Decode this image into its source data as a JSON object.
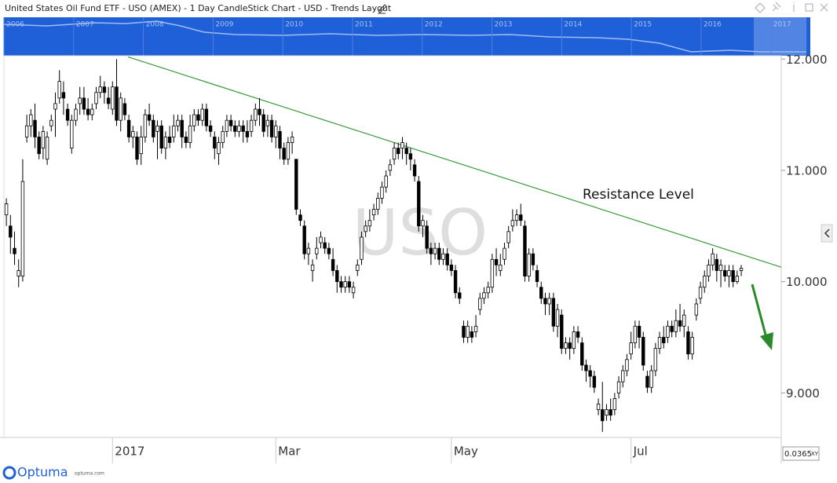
{
  "chart_data": {
    "type": "candlestick",
    "title": "United States Oil Fund ETF - USO (AMEX) - 1 Day CandleStick Chart - USD - Trends Layout",
    "watermark": "USO",
    "up_color": "#ffffff",
    "down_color": "#000000",
    "outline_color": "#000000",
    "open": [
      10.6,
      10.5,
      10.3,
      10.05,
      10.05,
      11.3,
      11.4,
      11.45,
      11.3,
      11.2,
      11.1,
      11.4,
      11.55,
      11.65,
      11.7,
      11.55,
      11.2,
      11.45,
      11.6,
      11.65,
      11.55,
      11.5,
      11.6,
      11.7,
      11.75,
      11.65,
      11.55,
      11.75,
      11.45,
      11.6,
      11.45,
      11.3,
      11.3,
      11.15,
      11.3,
      11.5,
      11.45,
      11.35,
      11.4,
      11.2,
      11.3,
      11.3,
      11.4,
      11.45,
      11.3,
      11.25,
      11.4,
      11.5,
      11.45,
      11.55,
      11.4,
      11.3,
      11.15,
      11.25,
      11.35,
      11.45,
      11.4,
      11.35,
      11.4,
      11.35,
      11.35,
      11.45,
      11.55,
      11.5,
      11.4,
      11.45,
      11.3,
      11.35,
      11.2,
      11.1,
      11.25,
      11.1,
      10.6,
      10.5,
      10.25,
      10.1,
      10.25,
      10.35,
      10.35,
      10.3,
      10.2,
      10.1,
      10.0,
      9.95,
      10.0,
      9.9,
      10.1,
      10.2,
      10.45,
      10.5,
      10.6,
      10.65,
      10.75,
      10.85,
      11.0,
      11.1,
      11.2,
      11.2,
      11.2,
      11.15,
      11.05,
      10.9,
      10.5,
      10.5,
      10.3,
      10.25,
      10.3,
      10.2,
      10.25,
      10.15,
      10.1,
      9.9,
      9.6,
      9.5,
      9.55,
      9.55,
      9.75,
      9.85,
      9.9,
      9.95,
      10.2,
      10.1,
      10.2,
      10.35,
      10.5,
      10.55,
      10.6,
      10.5,
      10.05,
      10.25,
      10.1,
      9.95,
      9.85,
      9.8,
      9.85,
      9.6,
      9.7,
      9.4,
      9.45,
      9.4,
      9.55,
      9.45,
      9.25,
      9.2,
      9.15,
      8.85,
      8.85,
      8.8,
      8.85,
      8.85,
      9.0,
      9.1,
      9.2,
      9.35,
      9.45,
      9.6,
      9.5,
      9.15,
      9.05,
      9.2,
      9.4,
      9.5,
      9.5,
      9.6,
      9.55,
      9.65,
      9.6,
      9.55,
      9.35,
      9.7,
      9.85,
      9.95,
      10.05,
      10.15,
      10.2,
      10.1,
      10.1,
      10.05,
      10.1,
      10.0,
      10.1
    ],
    "high": [
      10.75,
      10.6,
      10.45,
      10.2,
      11.1,
      11.5,
      11.55,
      11.6,
      11.35,
      11.4,
      11.35,
      11.5,
      11.7,
      11.9,
      11.8,
      11.6,
      11.5,
      11.6,
      11.75,
      11.75,
      11.65,
      11.6,
      11.75,
      11.85,
      11.8,
      11.75,
      11.8,
      12.0,
      11.7,
      11.65,
      11.5,
      11.4,
      11.35,
      11.4,
      11.55,
      11.6,
      11.5,
      11.45,
      11.45,
      11.35,
      11.4,
      11.5,
      11.5,
      11.5,
      11.35,
      11.5,
      11.55,
      11.55,
      11.6,
      11.6,
      11.45,
      11.35,
      11.3,
      11.4,
      11.5,
      11.5,
      11.45,
      11.45,
      11.45,
      11.45,
      11.5,
      11.6,
      11.65,
      11.55,
      11.5,
      11.5,
      11.45,
      11.4,
      11.25,
      11.3,
      11.35,
      11.1,
      10.65,
      10.55,
      10.35,
      10.2,
      10.4,
      10.45,
      10.4,
      10.35,
      10.3,
      10.15,
      10.05,
      10.05,
      10.05,
      10.0,
      10.2,
      10.45,
      10.55,
      10.65,
      10.7,
      10.8,
      10.9,
      11.0,
      11.1,
      11.25,
      11.25,
      11.3,
      11.25,
      11.2,
      11.1,
      10.95,
      10.6,
      10.55,
      10.35,
      10.35,
      10.35,
      10.3,
      10.3,
      10.2,
      10.15,
      9.95,
      9.65,
      9.65,
      9.6,
      9.7,
      9.9,
      9.95,
      10.0,
      10.25,
      10.3,
      10.25,
      10.35,
      10.5,
      10.65,
      10.65,
      10.7,
      10.55,
      10.3,
      10.3,
      10.15,
      10.0,
      9.9,
      9.9,
      9.9,
      9.8,
      9.75,
      9.5,
      9.5,
      9.6,
      9.6,
      9.5,
      9.3,
      9.25,
      9.2,
      8.95,
      9.1,
      8.9,
      8.95,
      9.0,
      9.15,
      9.25,
      9.35,
      9.55,
      9.65,
      9.65,
      9.55,
      9.2,
      9.25,
      9.45,
      9.55,
      9.6,
      9.65,
      9.65,
      9.75,
      9.8,
      9.75,
      9.6,
      9.55,
      9.85,
      10.0,
      10.1,
      10.2,
      10.3,
      10.25,
      10.2,
      10.15,
      10.15,
      10.15,
      10.1,
      10.15
    ],
    "low": [
      10.5,
      10.25,
      10.15,
      9.95,
      10.0,
      11.25,
      11.3,
      11.2,
      11.1,
      11.1,
      11.05,
      11.35,
      11.3,
      11.6,
      11.5,
      11.4,
      11.15,
      11.4,
      11.5,
      11.5,
      11.45,
      11.45,
      11.55,
      11.65,
      11.6,
      11.55,
      11.5,
      11.4,
      11.35,
      11.45,
      11.25,
      11.2,
      11.05,
      11.05,
      11.25,
      11.4,
      11.25,
      11.1,
      11.15,
      11.1,
      11.2,
      11.25,
      11.35,
      11.2,
      11.2,
      11.2,
      11.35,
      11.4,
      11.4,
      11.35,
      11.3,
      11.1,
      11.05,
      11.2,
      11.3,
      11.35,
      11.3,
      11.3,
      11.25,
      11.25,
      11.3,
      11.4,
      11.4,
      11.3,
      11.3,
      11.25,
      11.2,
      11.1,
      11.05,
      11.05,
      11.15,
      10.6,
      10.5,
      10.2,
      10.15,
      10.0,
      10.2,
      10.3,
      10.25,
      10.2,
      10.05,
      9.9,
      9.9,
      9.9,
      9.9,
      9.85,
      10.05,
      10.15,
      10.4,
      10.45,
      10.55,
      10.6,
      10.7,
      10.8,
      10.95,
      11.05,
      11.1,
      11.1,
      11.05,
      11.0,
      10.9,
      10.45,
      10.4,
      10.25,
      10.15,
      10.2,
      10.15,
      10.15,
      10.1,
      10.05,
      9.85,
      9.8,
      9.45,
      9.45,
      9.45,
      9.5,
      9.7,
      9.8,
      9.85,
      9.9,
      10.05,
      10.05,
      10.15,
      10.3,
      10.45,
      10.5,
      10.5,
      10.0,
      10.0,
      10.1,
      9.95,
      9.8,
      9.7,
      9.7,
      9.55,
      9.5,
      9.35,
      9.35,
      9.3,
      9.35,
      9.45,
      9.2,
      9.1,
      9.05,
      9.0,
      8.8,
      8.65,
      8.75,
      8.75,
      8.8,
      8.95,
      9.05,
      9.15,
      9.3,
      9.4,
      9.4,
      9.2,
      9.0,
      9.0,
      9.15,
      9.35,
      9.4,
      9.45,
      9.5,
      9.5,
      9.55,
      9.5,
      9.3,
      9.3,
      9.65,
      9.8,
      9.9,
      10.0,
      10.1,
      10.0,
      9.95,
      10.0,
      9.95,
      9.95,
      9.98,
      10.05
    ],
    "close": [
      10.7,
      10.4,
      10.25,
      10.1,
      10.9,
      11.4,
      11.5,
      11.3,
      11.15,
      11.35,
      11.3,
      11.45,
      11.6,
      11.8,
      11.65,
      11.45,
      11.45,
      11.55,
      11.65,
      11.55,
      11.5,
      11.55,
      11.7,
      11.75,
      11.7,
      11.6,
      11.75,
      11.45,
      11.65,
      11.5,
      11.3,
      11.35,
      11.1,
      11.3,
      11.5,
      11.45,
      11.3,
      11.4,
      11.2,
      11.3,
      11.25,
      11.4,
      11.45,
      11.3,
      11.25,
      11.4,
      11.5,
      11.45,
      11.55,
      11.4,
      11.35,
      11.2,
      11.25,
      11.35,
      11.45,
      11.4,
      11.35,
      11.4,
      11.35,
      11.3,
      11.45,
      11.55,
      11.5,
      11.35,
      11.45,
      11.3,
      11.4,
      11.2,
      11.1,
      11.25,
      11.3,
      10.65,
      10.55,
      10.25,
      10.3,
      10.15,
      10.3,
      10.4,
      10.3,
      10.25,
      10.1,
      10.0,
      9.95,
      10.0,
      9.95,
      9.95,
      10.15,
      10.4,
      10.5,
      10.55,
      10.65,
      10.75,
      10.85,
      10.95,
      11.05,
      11.2,
      11.15,
      11.25,
      11.15,
      11.1,
      10.95,
      10.5,
      10.55,
      10.3,
      10.25,
      10.3,
      10.2,
      10.25,
      10.15,
      10.1,
      9.9,
      9.85,
      9.5,
      9.6,
      9.5,
      9.6,
      9.85,
      9.9,
      9.95,
      10.2,
      10.15,
      10.15,
      10.3,
      10.45,
      10.55,
      10.6,
      10.55,
      10.05,
      10.25,
      10.15,
      10.0,
      9.85,
      9.8,
      9.85,
      9.6,
      9.75,
      9.4,
      9.45,
      9.4,
      9.55,
      9.5,
      9.25,
      9.2,
      9.15,
      9.05,
      8.9,
      8.75,
      8.85,
      8.8,
      8.95,
      9.1,
      9.2,
      9.3,
      9.45,
      9.6,
      9.5,
      9.25,
      9.05,
      9.2,
      9.4,
      9.5,
      9.45,
      9.6,
      9.55,
      9.65,
      9.6,
      9.7,
      9.35,
      9.5,
      9.8,
      9.95,
      10.05,
      10.15,
      10.25,
      10.1,
      10.15,
      10.05,
      10.1,
      10.0,
      10.05,
      10.12
    ],
    "xlim": [
      -0.6,
      189.8
    ],
    "xticks": [
      {
        "value": 26,
        "label": "2017"
      },
      {
        "value": 66,
        "label": "Mar"
      },
      {
        "value": 109,
        "label": "May"
      },
      {
        "value": 153,
        "label": "Jul"
      }
    ],
    "ylim": [
      8.6,
      12.03
    ],
    "yticks": [
      {
        "value": 9,
        "label": "9.000"
      },
      {
        "value": 10,
        "label": "10.000"
      },
      {
        "value": 11,
        "label": "11.000"
      },
      {
        "value": 12,
        "label": "12.000"
      }
    ],
    "grid": false,
    "trendline": {
      "x": [
        29.8,
        189.8
      ],
      "y": [
        12.02,
        10.13
      ],
      "color": "#3a9a3a",
      "label": "Resistance Level"
    }
  },
  "navigator_labels": [
    "2006",
    "2007",
    "2008",
    "2009",
    "2010",
    "2011",
    "2012",
    "2013",
    "2014",
    "2015",
    "2016",
    "2017"
  ],
  "footer": {
    "readout": "0.0365",
    "mode": "XY",
    "brand": "Optuma",
    "url": "optuma.com"
  }
}
